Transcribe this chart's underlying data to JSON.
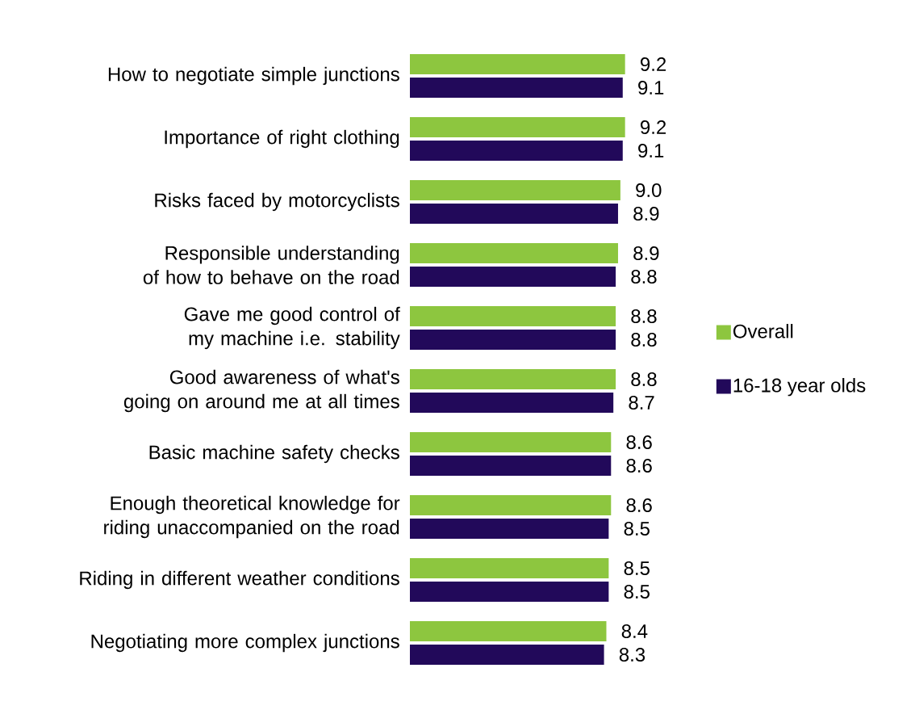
{
  "chart_data": {
    "type": "bar",
    "orientation": "horizontal",
    "data_labels": true,
    "legend": "right",
    "categories": [
      "How to negotiate simple junctions",
      "Importance of right clothing",
      "Risks faced by motorcyclists",
      "Responsible understanding of how to behave on the road",
      "Gave me good control of my machine i.e. stability",
      "Good awareness of what's going on around me at all times",
      "Basic machine safety checks",
      "Enough theoretical knowledge for riding  unaccompanied on the road",
      "Riding in different weather conditions",
      "Negotiating more complex junctions"
    ],
    "series": [
      {
        "name": "Overall",
        "color": "#8dc63f",
        "values": [
          9.2,
          9.2,
          9.0,
          8.9,
          8.8,
          8.8,
          8.6,
          8.6,
          8.5,
          8.4
        ],
        "value_labels": [
          "9.2",
          "9.2",
          "9.0",
          "8.9",
          "8.8",
          "8.8",
          "8.6",
          "8.6",
          "8.5",
          "8.4"
        ]
      },
      {
        "name": "16-18 year olds",
        "color": "#22095a",
        "values": [
          9.1,
          9.1,
          8.9,
          8.8,
          8.8,
          8.7,
          8.6,
          8.5,
          8.5,
          8.3
        ],
        "value_labels": [
          "9.1",
          "9.1",
          "8.9",
          "8.8",
          "8.8",
          "8.7",
          "8.6",
          "8.5",
          "8.5",
          "8.3"
        ]
      }
    ]
  }
}
